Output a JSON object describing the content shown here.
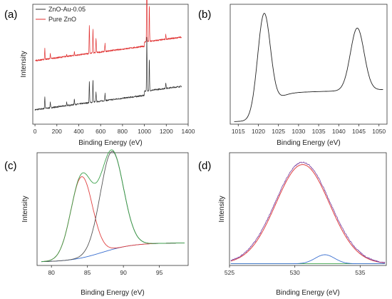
{
  "chart_data": [
    {
      "panel": "a",
      "type": "line",
      "xlabel": "Binding Energy (eV)",
      "ylabel": "Intensity",
      "xlim": [
        -20,
        1400
      ],
      "ylim": [
        0,
        10
      ],
      "xticks": [
        0,
        200,
        400,
        600,
        800,
        1000,
        1200,
        1400
      ],
      "legend_position": "top-left",
      "series": [
        {
          "name": "ZnO-Au-0.05",
          "color": "#333333",
          "offset": 1.2,
          "peaks": [
            [
              90,
              1.0
            ],
            [
              140,
              0.5
            ],
            [
              290,
              0.3
            ],
            [
              360,
              0.5
            ],
            [
              497,
              1.8
            ],
            [
              530,
              1.9
            ],
            [
              558,
              0.8
            ],
            [
              640,
              0.6
            ],
            [
              1022,
              4.6
            ],
            [
              1045,
              2.6
            ],
            [
              1196,
              0.5
            ]
          ]
        },
        {
          "name": "Pure ZnO",
          "color": "#e03030",
          "offset": 5.3,
          "peaks": [
            [
              90,
              0.9
            ],
            [
              140,
              0.4
            ],
            [
              290,
              0.2
            ],
            [
              360,
              0.3
            ],
            [
              497,
              2.4
            ],
            [
              530,
              2.0
            ],
            [
              558,
              1.2
            ],
            [
              640,
              0.7
            ],
            [
              1022,
              7.2
            ],
            [
              1045,
              3.0
            ],
            [
              1196,
              0.4
            ]
          ]
        }
      ]
    },
    {
      "panel": "b",
      "type": "line",
      "xlabel": "Binding Energy (eV)",
      "xlim": [
        1013,
        1052
      ],
      "ylim": [
        0,
        10
      ],
      "xticks": [
        1015,
        1020,
        1025,
        1030,
        1035,
        1040,
        1045,
        1050
      ],
      "series": [
        {
          "color": "#222222",
          "baseline": [
            0.3,
            2.6
          ],
          "peaks": [
            [
              1021.4,
              8.5,
              1.6
            ],
            [
              1044.6,
              5.2,
              1.7
            ]
          ]
        }
      ]
    },
    {
      "panel": "c",
      "type": "line",
      "xlabel": "Binding Energy (eV)",
      "ylabel": "Intensity",
      "xlim": [
        78,
        99
      ],
      "ylim": [
        0,
        10
      ],
      "xticks": [
        80,
        85,
        90,
        95
      ],
      "series": [
        {
          "color": "#3aa04a",
          "role": "envelope"
        },
        {
          "color": "#e04040",
          "role": "component",
          "peak": [
            84.2,
            7.2,
            1.5
          ]
        },
        {
          "color": "#555555",
          "role": "component",
          "peak": [
            88.4,
            8.7,
            1.6
          ]
        },
        {
          "color": "#3a6fd0",
          "role": "background",
          "range": [
            0.3,
            2.0
          ],
          "center": 87.0
        }
      ]
    },
    {
      "panel": "d",
      "type": "line",
      "xlabel": "Binding Energy (eV)",
      "ylabel": "Intensity",
      "xlim": [
        525,
        537
      ],
      "ylim": [
        0,
        10
      ],
      "xticks": [
        525,
        530,
        535
      ],
      "series": [
        {
          "color": "#7a3fa0",
          "role": "raw",
          "peak": [
            530.6,
            9.0,
            2.1
          ]
        },
        {
          "color": "#e04040",
          "role": "component",
          "peak": [
            530.6,
            8.8,
            2.05
          ]
        },
        {
          "color": "#3a6fd0",
          "role": "component",
          "peak": [
            532.3,
            0.8,
            0.75
          ]
        },
        {
          "color": "#3aa04a",
          "role": "background",
          "level": 0.15
        }
      ]
    }
  ]
}
